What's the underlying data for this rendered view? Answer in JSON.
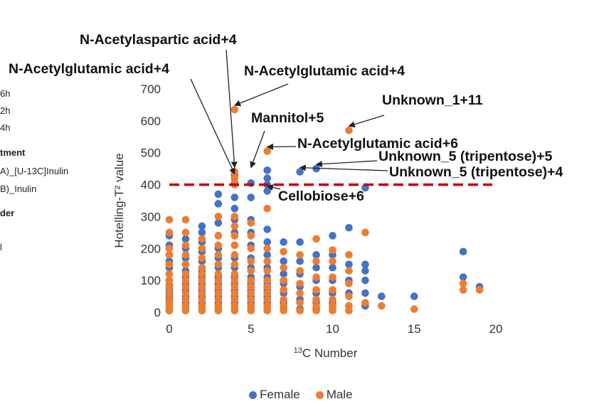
{
  "side_panel": {
    "items": [
      "6h",
      "2h",
      "4h"
    ],
    "treatment_header": "tment",
    "treatments": [
      "A)_[U-13C]Inulin",
      "B)_Inulin"
    ],
    "order_header": "der",
    "extra": "l"
  },
  "chart_data": {
    "type": "scatter",
    "xlabel": "13C Number",
    "ylabel": "Hotelling-T² value",
    "xlim": [
      0,
      20
    ],
    "ylim": [
      0,
      700
    ],
    "xticks": [
      0,
      5,
      10,
      15,
      20
    ],
    "yticks": [
      0,
      100,
      200,
      300,
      400,
      500,
      600,
      700
    ],
    "grid": false,
    "legend_position": "bottom",
    "threshold": {
      "y": 400,
      "color": "#c00000",
      "style": "dashed"
    },
    "series": [
      {
        "name": "Female",
        "color": "#4472c4",
        "points": [
          [
            0,
            5
          ],
          [
            0,
            15
          ],
          [
            0,
            25
          ],
          [
            0,
            35
          ],
          [
            0,
            45
          ],
          [
            0,
            55
          ],
          [
            0,
            65
          ],
          [
            0,
            75
          ],
          [
            0,
            85
          ],
          [
            0,
            100
          ],
          [
            0,
            120
          ],
          [
            0,
            140
          ],
          [
            0,
            160
          ],
          [
            0,
            180
          ],
          [
            0,
            210
          ],
          [
            0,
            240
          ],
          [
            1,
            10
          ],
          [
            1,
            30
          ],
          [
            1,
            50
          ],
          [
            1,
            70
          ],
          [
            1,
            90
          ],
          [
            1,
            110
          ],
          [
            1,
            130
          ],
          [
            1,
            150
          ],
          [
            1,
            170
          ],
          [
            1,
            200
          ],
          [
            1,
            230
          ],
          [
            2,
            10
          ],
          [
            2,
            30
          ],
          [
            2,
            50
          ],
          [
            2,
            70
          ],
          [
            2,
            90
          ],
          [
            2,
            110
          ],
          [
            2,
            130
          ],
          [
            2,
            160
          ],
          [
            2,
            190
          ],
          [
            2,
            220
          ],
          [
            2,
            250
          ],
          [
            2,
            270
          ],
          [
            3,
            10
          ],
          [
            3,
            30
          ],
          [
            3,
            50
          ],
          [
            3,
            70
          ],
          [
            3,
            90
          ],
          [
            3,
            110
          ],
          [
            3,
            140
          ],
          [
            3,
            170
          ],
          [
            3,
            200
          ],
          [
            3,
            240
          ],
          [
            3,
            280
          ],
          [
            3,
            340
          ],
          [
            3,
            370
          ],
          [
            4,
            10
          ],
          [
            4,
            30
          ],
          [
            4,
            50
          ],
          [
            4,
            70
          ],
          [
            4,
            90
          ],
          [
            4,
            110
          ],
          [
            4,
            140
          ],
          [
            4,
            170
          ],
          [
            4,
            210
          ],
          [
            4,
            250
          ],
          [
            4,
            290
          ],
          [
            4,
            325
          ],
          [
            4,
            360
          ],
          [
            4,
            405
          ],
          [
            4,
            430
          ],
          [
            5,
            10
          ],
          [
            5,
            30
          ],
          [
            5,
            50
          ],
          [
            5,
            70
          ],
          [
            5,
            90
          ],
          [
            5,
            110
          ],
          [
            5,
            140
          ],
          [
            5,
            170
          ],
          [
            5,
            210
          ],
          [
            5,
            250
          ],
          [
            5,
            290
          ],
          [
            5,
            360
          ],
          [
            5,
            405
          ],
          [
            6,
            10
          ],
          [
            6,
            30
          ],
          [
            6,
            50
          ],
          [
            6,
            70
          ],
          [
            6,
            90
          ],
          [
            6,
            110
          ],
          [
            6,
            140
          ],
          [
            6,
            180
          ],
          [
            6,
            220
          ],
          [
            6,
            260
          ],
          [
            6,
            380
          ],
          [
            6,
            400
          ],
          [
            6,
            420
          ],
          [
            6,
            445
          ],
          [
            7,
            10
          ],
          [
            7,
            30
          ],
          [
            7,
            60
          ],
          [
            7,
            90
          ],
          [
            7,
            120
          ],
          [
            7,
            160
          ],
          [
            7,
            220
          ],
          [
            8,
            10
          ],
          [
            8,
            40
          ],
          [
            8,
            80
          ],
          [
            8,
            120
          ],
          [
            8,
            160
          ],
          [
            8,
            220
          ],
          [
            8,
            440
          ],
          [
            9,
            10
          ],
          [
            9,
            30
          ],
          [
            9,
            60
          ],
          [
            9,
            100
          ],
          [
            9,
            140
          ],
          [
            9,
            180
          ],
          [
            9,
            450
          ],
          [
            10,
            10
          ],
          [
            10,
            30
          ],
          [
            10,
            60
          ],
          [
            10,
            100
          ],
          [
            10,
            140
          ],
          [
            10,
            180
          ],
          [
            10,
            240
          ],
          [
            11,
            20
          ],
          [
            11,
            60
          ],
          [
            11,
            100
          ],
          [
            11,
            150
          ],
          [
            11,
            265
          ],
          [
            12,
            20
          ],
          [
            12,
            60
          ],
          [
            12,
            100
          ],
          [
            12,
            130
          ],
          [
            12,
            150
          ],
          [
            12,
            390
          ],
          [
            13,
            50
          ],
          [
            15,
            50
          ],
          [
            18,
            110
          ],
          [
            18,
            190
          ],
          [
            19,
            80
          ]
        ]
      },
      {
        "name": "Male",
        "color": "#ed7d31",
        "points": [
          [
            0,
            5
          ],
          [
            0,
            15
          ],
          [
            0,
            25
          ],
          [
            0,
            40
          ],
          [
            0,
            60
          ],
          [
            0,
            80
          ],
          [
            0,
            100
          ],
          [
            0,
            120
          ],
          [
            0,
            150
          ],
          [
            0,
            180
          ],
          [
            0,
            200
          ],
          [
            0,
            250
          ],
          [
            0,
            290
          ],
          [
            1,
            5
          ],
          [
            1,
            20
          ],
          [
            1,
            40
          ],
          [
            1,
            60
          ],
          [
            1,
            80
          ],
          [
            1,
            100
          ],
          [
            1,
            120
          ],
          [
            1,
            150
          ],
          [
            1,
            180
          ],
          [
            1,
            210
          ],
          [
            1,
            250
          ],
          [
            1,
            290
          ],
          [
            2,
            5
          ],
          [
            2,
            20
          ],
          [
            2,
            40
          ],
          [
            2,
            60
          ],
          [
            2,
            80
          ],
          [
            2,
            100
          ],
          [
            2,
            120
          ],
          [
            2,
            140
          ],
          [
            2,
            170
          ],
          [
            2,
            200
          ],
          [
            2,
            230
          ],
          [
            3,
            5
          ],
          [
            3,
            20
          ],
          [
            3,
            40
          ],
          [
            3,
            60
          ],
          [
            3,
            80
          ],
          [
            3,
            100
          ],
          [
            3,
            120
          ],
          [
            3,
            150
          ],
          [
            3,
            180
          ],
          [
            3,
            210
          ],
          [
            3,
            240
          ],
          [
            3,
            300
          ],
          [
            4,
            5
          ],
          [
            4,
            20
          ],
          [
            4,
            40
          ],
          [
            4,
            60
          ],
          [
            4,
            80
          ],
          [
            4,
            100
          ],
          [
            4,
            120
          ],
          [
            4,
            150
          ],
          [
            4,
            180
          ],
          [
            4,
            210
          ],
          [
            4,
            240
          ],
          [
            4,
            270
          ],
          [
            4,
            300
          ],
          [
            4,
            400
          ],
          [
            4,
            420
          ],
          [
            4,
            440
          ],
          [
            4,
            635
          ],
          [
            5,
            5
          ],
          [
            5,
            20
          ],
          [
            5,
            40
          ],
          [
            5,
            60
          ],
          [
            5,
            80
          ],
          [
            5,
            100
          ],
          [
            5,
            130
          ],
          [
            5,
            160
          ],
          [
            5,
            200
          ],
          [
            5,
            240
          ],
          [
            5,
            280
          ],
          [
            6,
            5
          ],
          [
            6,
            20
          ],
          [
            6,
            40
          ],
          [
            6,
            60
          ],
          [
            6,
            80
          ],
          [
            6,
            100
          ],
          [
            6,
            130
          ],
          [
            6,
            160
          ],
          [
            6,
            200
          ],
          [
            6,
            325
          ],
          [
            6,
            505
          ],
          [
            7,
            5
          ],
          [
            7,
            20
          ],
          [
            7,
            40
          ],
          [
            7,
            70
          ],
          [
            7,
            100
          ],
          [
            7,
            140
          ],
          [
            7,
            190
          ],
          [
            8,
            5
          ],
          [
            8,
            30
          ],
          [
            8,
            60
          ],
          [
            8,
            90
          ],
          [
            8,
            130
          ],
          [
            8,
            180
          ],
          [
            9,
            5
          ],
          [
            9,
            20
          ],
          [
            9,
            40
          ],
          [
            9,
            70
          ],
          [
            9,
            110
          ],
          [
            9,
            160
          ],
          [
            9,
            230
          ],
          [
            10,
            5
          ],
          [
            10,
            20
          ],
          [
            10,
            40
          ],
          [
            10,
            70
          ],
          [
            10,
            110
          ],
          [
            10,
            160
          ],
          [
            10,
            195
          ],
          [
            11,
            5
          ],
          [
            11,
            20
          ],
          [
            11,
            50
          ],
          [
            11,
            90
          ],
          [
            11,
            130
          ],
          [
            11,
            180
          ],
          [
            11,
            570
          ],
          [
            12,
            30
          ],
          [
            12,
            250
          ],
          [
            13,
            20
          ],
          [
            15,
            10
          ],
          [
            18,
            70
          ],
          [
            18,
            90
          ],
          [
            19,
            70
          ]
        ]
      }
    ],
    "annotations": [
      {
        "text": "N-Acetylaspartic acid+4",
        "x": 4,
        "y": 440
      },
      {
        "text": "N-Acetylglutamic acid+4",
        "x": 4,
        "y": 420
      },
      {
        "text": "N-Acetylglutamic acid+4",
        "x": 4,
        "y": 635
      },
      {
        "text": "Unknown_1+11",
        "x": 11,
        "y": 570
      },
      {
        "text": "Mannitol+5",
        "x": 5,
        "y": 440
      },
      {
        "text": "N-Acetylglutamic acid+6",
        "x": 6,
        "y": 505
      },
      {
        "text": "Unknown_5 (tripentose)+5",
        "x": 9,
        "y": 450
      },
      {
        "text": "Unknown_5 (tripentose)+4",
        "x": 8,
        "y": 440
      },
      {
        "text": "Cellobiose+6",
        "x": 6,
        "y": 400
      }
    ]
  }
}
